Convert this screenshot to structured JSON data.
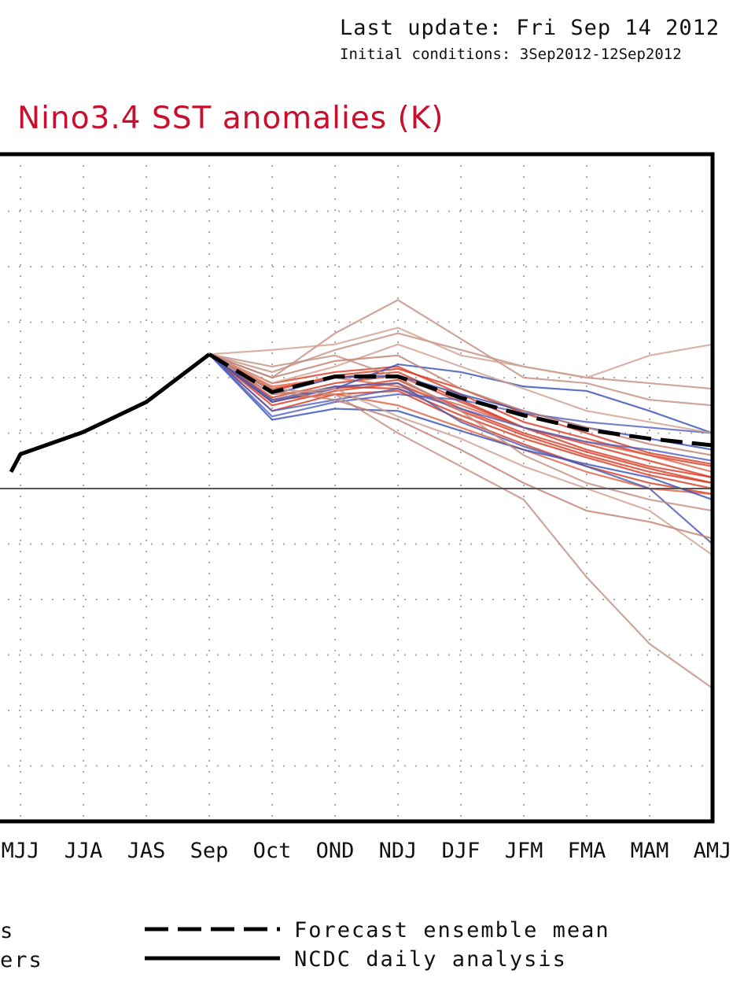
{
  "header": {
    "last_update": "Last update: Fri Sep 14 2012",
    "initial_conditions": "Initial conditions: 3Sep2012-12Sep2012",
    "title": "Nino3.4 SST anomalies (K)"
  },
  "legend": {
    "partial_1": "s",
    "partial_2": "ers",
    "ensemble_mean": "Forecast ensemble mean",
    "ncdc": "NCDC daily analysis"
  },
  "chart_data": {
    "type": "line",
    "title": "Nino3.4 SST anomalies (K)",
    "categories": [
      "MJJ",
      "JJA",
      "JAS",
      "Sep",
      "Oct",
      "OND",
      "NDJ",
      "DJF",
      "JFM",
      "FMA",
      "MAM",
      "AMJ"
    ],
    "ylim": [
      -3.0,
      3.0
    ],
    "grid": true,
    "zero_line": 0.0,
    "series": [
      {
        "name": "NCDC daily analysis",
        "color": "#000000",
        "style": "solid",
        "x": [
          -0.15,
          0,
          1,
          2,
          3
        ],
        "y": [
          0.15,
          0.31,
          0.51,
          0.78,
          1.21
        ]
      },
      {
        "name": "Forecast ensemble mean",
        "color": "#000000",
        "style": "dashed",
        "x": [
          3,
          4,
          5,
          6,
          7,
          8,
          9,
          10,
          11
        ],
        "y": [
          1.21,
          0.87,
          1.01,
          1.01,
          0.82,
          0.66,
          0.53,
          0.45,
          0.39
        ]
      }
    ],
    "members": [
      {
        "color": "#d83a22",
        "y": [
          1.21,
          0.9,
          1.0,
          1.05,
          0.8,
          0.55,
          0.35,
          0.2,
          0.1
        ]
      },
      {
        "color": "#d83a22",
        "y": [
          1.21,
          0.82,
          0.95,
          1.02,
          0.78,
          0.55,
          0.4,
          0.25,
          0.1
        ]
      },
      {
        "color": "#d83a22",
        "y": [
          1.21,
          0.75,
          0.88,
          0.95,
          0.7,
          0.48,
          0.3,
          0.15,
          0.05
        ]
      },
      {
        "color": "#d83a22",
        "y": [
          1.21,
          0.7,
          0.85,
          0.88,
          0.62,
          0.4,
          0.2,
          0.05,
          -0.05
        ]
      },
      {
        "color": "#d83a22",
        "y": [
          1.21,
          0.95,
          1.05,
          1.1,
          0.85,
          0.6,
          0.45,
          0.3,
          0.2
        ]
      },
      {
        "color": "#d83a22",
        "y": [
          1.21,
          0.85,
          0.9,
          0.98,
          0.72,
          0.5,
          0.33,
          0.18,
          0.05
        ]
      },
      {
        "color": "#d83a22",
        "y": [
          1.21,
          0.78,
          0.92,
          0.9,
          0.66,
          0.45,
          0.28,
          0.12,
          0.0
        ]
      },
      {
        "color": "#d83a22",
        "y": [
          1.21,
          0.88,
          1.02,
          1.08,
          0.9,
          0.68,
          0.5,
          0.32,
          0.22
        ]
      },
      {
        "color": "#e06040",
        "y": [
          1.21,
          0.8,
          0.85,
          0.75,
          0.55,
          0.35,
          0.15,
          0.0,
          -0.05
        ]
      },
      {
        "color": "#e06040",
        "y": [
          1.21,
          0.92,
          1.0,
          0.92,
          0.75,
          0.55,
          0.42,
          0.3,
          0.15
        ]
      },
      {
        "color": "#3650b8",
        "y": [
          1.21,
          0.62,
          0.72,
          0.7,
          0.52,
          0.35,
          0.22,
          0.1,
          -0.1
        ]
      },
      {
        "color": "#3650b8",
        "y": [
          1.21,
          0.78,
          0.9,
          1.12,
          1.05,
          0.92,
          0.88,
          0.7,
          0.5
        ]
      },
      {
        "color": "#3650b8",
        "y": [
          1.21,
          0.85,
          1.0,
          1.02,
          0.85,
          0.7,
          0.55,
          0.45,
          0.35
        ]
      },
      {
        "color": "#5060c0",
        "y": [
          1.21,
          0.7,
          0.8,
          0.9,
          0.72,
          0.55,
          0.42,
          0.35,
          0.25
        ]
      },
      {
        "color": "#5060c0",
        "y": [
          1.21,
          0.65,
          0.78,
          0.85,
          0.8,
          0.68,
          0.6,
          0.55,
          0.5
        ]
      },
      {
        "color": "#4a5ab0",
        "y": [
          1.21,
          0.8,
          0.92,
          0.95,
          0.6,
          0.38,
          0.2,
          0.0,
          -0.5
        ]
      },
      {
        "color": "#c09080",
        "y": [
          1.21,
          1.0,
          1.4,
          1.7,
          1.35,
          1.0,
          0.95,
          0.8,
          0.75
        ]
      },
      {
        "color": "#c09080",
        "y": [
          1.21,
          1.05,
          1.25,
          1.4,
          1.25,
          1.1,
          1.0,
          0.95,
          0.9
        ]
      },
      {
        "color": "#c09080",
        "y": [
          1.21,
          0.9,
          0.85,
          0.5,
          0.2,
          -0.1,
          -0.8,
          -1.4,
          -1.8
        ]
      },
      {
        "color": "#c09080",
        "y": [
          1.21,
          1.1,
          1.2,
          1.0,
          0.7,
          0.3,
          0.05,
          -0.1,
          -0.2
        ]
      },
      {
        "color": "#d0a090",
        "y": [
          1.21,
          1.25,
          1.3,
          1.45,
          1.2,
          1.1,
          1.0,
          1.2,
          1.3
        ]
      },
      {
        "color": "#d0a090",
        "y": [
          1.21,
          0.95,
          1.1,
          1.3,
          1.1,
          0.9,
          0.7,
          0.6,
          0.5
        ]
      },
      {
        "color": "#d0a090",
        "y": [
          1.21,
          0.85,
          0.9,
          0.65,
          0.45,
          0.2,
          0.0,
          -0.2,
          -0.6
        ]
      },
      {
        "color": "#c08070",
        "y": [
          1.21,
          1.0,
          1.15,
          1.2,
          0.9,
          0.7,
          0.55,
          0.4,
          0.3
        ]
      },
      {
        "color": "#c08070",
        "y": [
          1.21,
          0.88,
          0.8,
          0.62,
          0.35,
          0.05,
          -0.2,
          -0.3,
          -0.45
        ]
      }
    ]
  }
}
